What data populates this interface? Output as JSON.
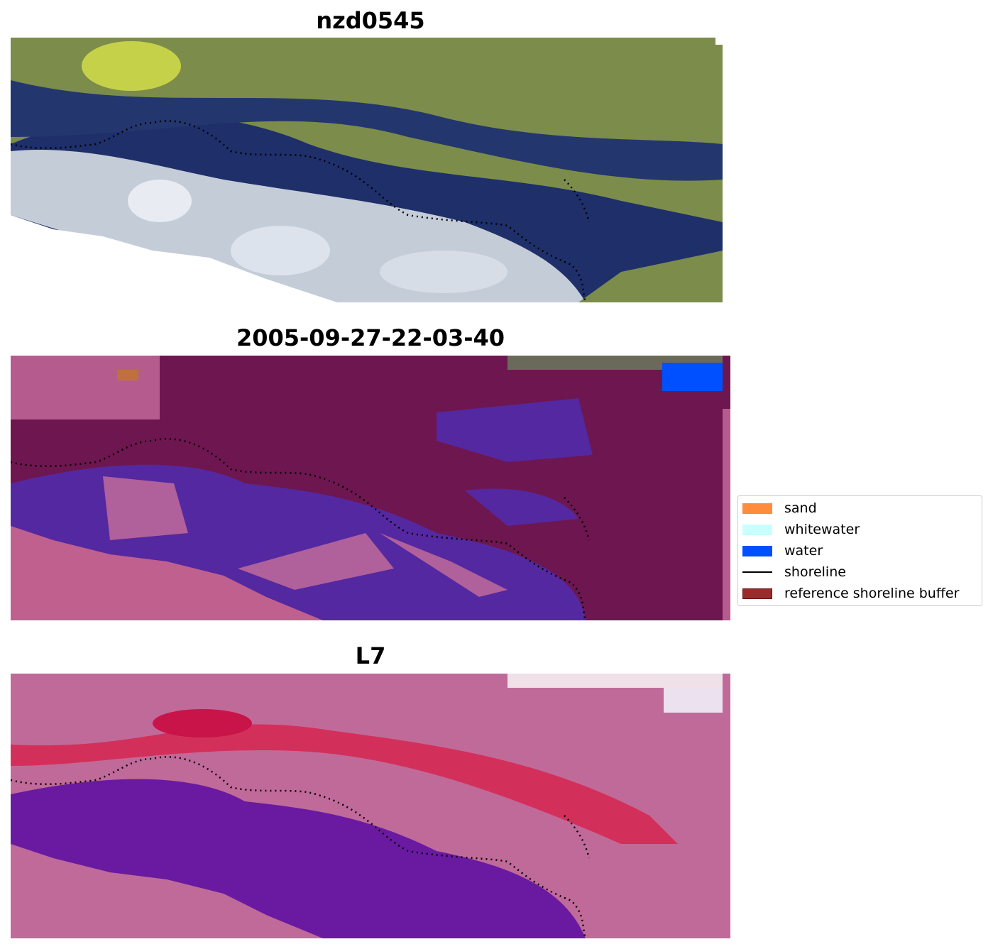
{
  "panels": [
    {
      "title": "nzd0545",
      "style": "rgb"
    },
    {
      "title": "2005-09-27-22-03-40",
      "style": "classified"
    },
    {
      "title": "L7",
      "style": "index"
    }
  ],
  "legend": {
    "items": [
      {
        "label": "sand",
        "color": "#ff8c3c",
        "kind": "swatch"
      },
      {
        "label": "whitewater",
        "color": "#c8ffff",
        "kind": "swatch"
      },
      {
        "label": "water",
        "color": "#0050ff",
        "kind": "swatch"
      },
      {
        "label": "shoreline",
        "color": "#000000",
        "kind": "line"
      },
      {
        "label": "reference shoreline buffer",
        "color": "#9b2a2a",
        "kind": "swatch"
      }
    ]
  },
  "colors": {
    "rgb_land": "#8a9a4a",
    "rgb_water": "#1e2f6a",
    "rgb_surf": "#c4ccd8",
    "class_buffer": "#6e1650",
    "class_water": "#5428a0",
    "class_pink": "#c0608e",
    "index_red": "#d2305a",
    "index_purple": "#6a1aa0",
    "index_pink": "#c06a9a"
  }
}
